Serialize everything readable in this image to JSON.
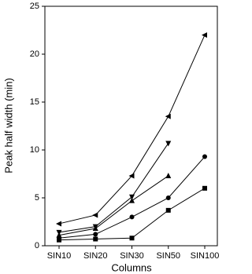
{
  "chart_data": {
    "type": "line",
    "xlabel": "Columns",
    "ylabel": "Peak half width (min)",
    "categories": [
      "SIN10",
      "SIN20",
      "SIN30",
      "SIN50",
      "SIN100"
    ],
    "ylim": [
      0,
      25
    ],
    "yticks": [
      0,
      5,
      10,
      15,
      20,
      25
    ],
    "series": [
      {
        "color": "#000000",
        "marker": "square",
        "values": [
          0.6,
          0.7,
          0.8,
          3.7,
          6.0
        ]
      },
      {
        "color": "#000000",
        "marker": "circle",
        "values": [
          0.8,
          1.2,
          3.0,
          5.0,
          9.3
        ]
      },
      {
        "color": "#000000",
        "marker": "triangle-up",
        "values": [
          1.1,
          1.8,
          4.7,
          7.3,
          null
        ]
      },
      {
        "color": "#000000",
        "marker": "triangle-down",
        "values": [
          1.4,
          2.0,
          5.1,
          10.7,
          null
        ]
      },
      {
        "color": "#000000",
        "marker": "triangle-left",
        "values": [
          2.3,
          3.2,
          7.3,
          13.5,
          22.0
        ]
      }
    ]
  }
}
